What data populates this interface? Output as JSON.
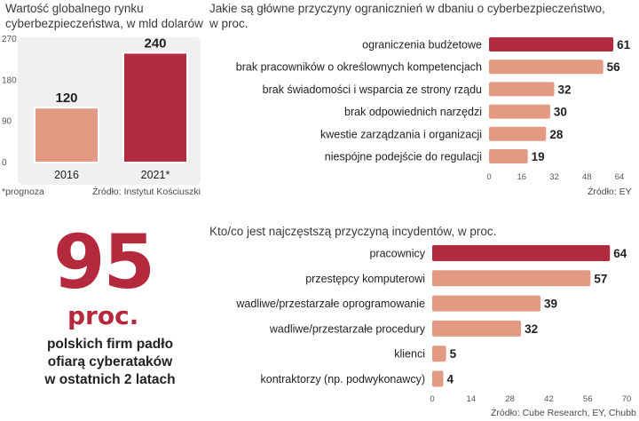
{
  "colors": {
    "highlight": "#b12a3e",
    "bar": "#e39a83",
    "panel_bg": "#f0f0f0",
    "axis_text": "#555555"
  },
  "chart_data": [
    {
      "type": "bar",
      "title_lines": [
        "Wartość globalnego rynku",
        "cyberbezpieczeństwa, w mld dolarów"
      ],
      "categories": [
        "2016",
        "2021*"
      ],
      "values": [
        120,
        240
      ],
      "ylim": [
        0,
        270
      ],
      "yticks": [
        "0",
        "90",
        "180",
        "270"
      ],
      "note": "*prognoza",
      "source": "Źródło: Instytut Kościuszki",
      "grid": false
    },
    {
      "type": "bar",
      "orientation": "horizontal",
      "title_lines": [
        "Jakie są główne przyczyny ogranicznień w dbaniu o cyberbezpieczeństwo,",
        "w proc."
      ],
      "categories": [
        "ograniczenia budżetowe",
        "brak pracowników o określownych kompetencjach",
        "brak świadomości i wsparcia ze strony rządu",
        "brak odpowiednich narzędzi",
        "kwestie zarządzania i organizacji",
        "niespójne podejście do regulacji"
      ],
      "values": [
        61,
        56,
        32,
        30,
        28,
        19
      ],
      "xlim": [
        0,
        64
      ],
      "xticks": [
        "0",
        "16",
        "32",
        "48",
        "64"
      ],
      "source": "Źródło: EY",
      "grid": false
    },
    {
      "type": "bar",
      "orientation": "horizontal",
      "title_lines": [
        "Kto/co jest najczęstszą przyczyną incydentów, w proc."
      ],
      "categories": [
        "pracownicy",
        "przestępcy komputerowi",
        "wadliwe/przestarzałe oprogramowanie",
        "wadliwe/przestarzałe procedury",
        "klienci",
        "kontraktorzy (np. podwykonawcy)"
      ],
      "values": [
        64,
        57,
        39,
        32,
        5,
        4
      ],
      "xlim": [
        0,
        70
      ],
      "xticks": [
        "0",
        "14",
        "28",
        "42",
        "56",
        "70"
      ],
      "source": "Źródło: Cube Research, EY, Chubb",
      "grid": false
    }
  ],
  "stat": {
    "number": "95",
    "unit": "proc.",
    "lines": [
      "polskich firm padło",
      "ofiarą cyberataków",
      "w ostatnich 2 latach"
    ]
  }
}
